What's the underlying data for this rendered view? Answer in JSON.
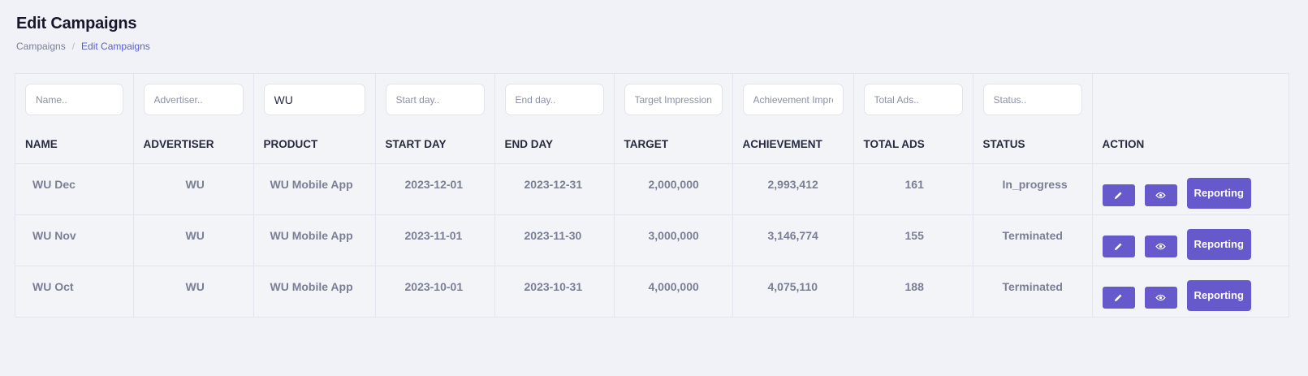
{
  "page": {
    "title": "Edit Campaigns",
    "breadcrumb": [
      "Campaigns",
      "Edit Campaigns"
    ]
  },
  "filters": [
    {
      "key": "name",
      "placeholder": "Name..",
      "value": ""
    },
    {
      "key": "advertiser",
      "placeholder": "Advertiser..",
      "value": ""
    },
    {
      "key": "product",
      "placeholder": "",
      "value": "WU"
    },
    {
      "key": "start_day",
      "placeholder": "Start day..",
      "value": ""
    },
    {
      "key": "end_day",
      "placeholder": "End day..",
      "value": ""
    },
    {
      "key": "target",
      "placeholder": "Target Impressions..",
      "value": ""
    },
    {
      "key": "achievement",
      "placeholder": "Achievement Impressions..",
      "value": ""
    },
    {
      "key": "total_ads",
      "placeholder": "Total Ads..",
      "value": ""
    },
    {
      "key": "status",
      "placeholder": "Status..",
      "value": ""
    }
  ],
  "columns": [
    "NAME",
    "ADVERTISER",
    "PRODUCT",
    "START DAY",
    "END DAY",
    "TARGET",
    "ACHIEVEMENT",
    "TOTAL ADS",
    "STATUS",
    "ACTION"
  ],
  "rows": [
    {
      "name": "WU Dec",
      "advertiser": "WU",
      "product": "WU Mobile App",
      "start": "2023-12-01",
      "end": "2023-12-31",
      "target": "2,000,000",
      "achievement": "2,993,412",
      "total_ads": "161",
      "status": "In_progress"
    },
    {
      "name": "WU Nov",
      "advertiser": "WU",
      "product": "WU Mobile App",
      "start": "2023-11-01",
      "end": "2023-11-30",
      "target": "3,000,000",
      "achievement": "3,146,774",
      "total_ads": "155",
      "status": "Terminated"
    },
    {
      "name": "WU Oct",
      "advertiser": "WU",
      "product": "WU Mobile App",
      "start": "2023-10-01",
      "end": "2023-10-31",
      "target": "4,000,000",
      "achievement": "4,075,110",
      "total_ads": "188",
      "status": "Terminated"
    }
  ],
  "actions": {
    "edit_icon": "pencil-icon",
    "view_icon": "eye-icon",
    "report_label": "Reporting"
  },
  "colors": {
    "accent": "#6659cc",
    "breadcrumb_active": "#5b5fc7",
    "background": "#f1f2f7"
  }
}
